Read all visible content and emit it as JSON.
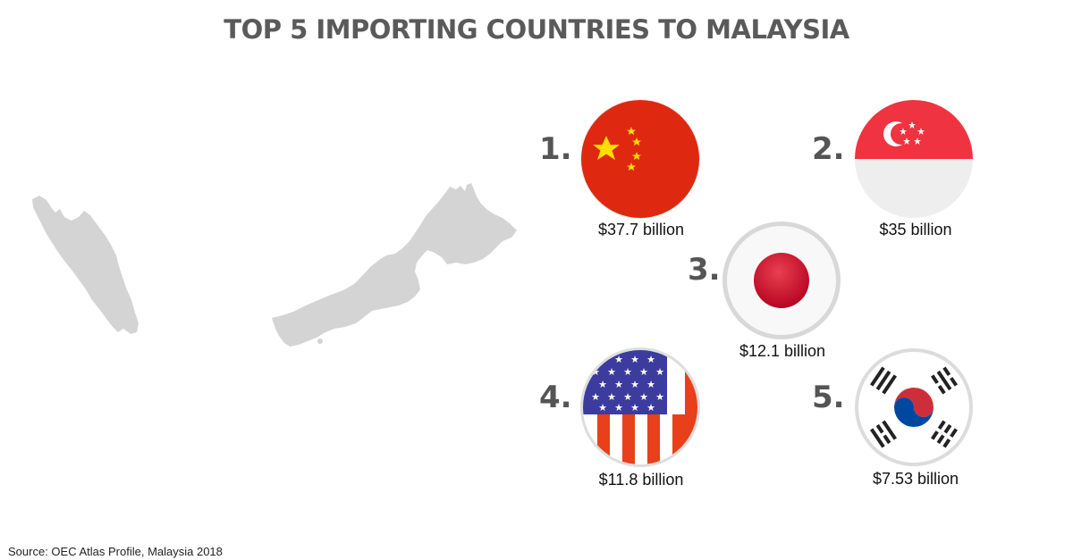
{
  "title": "TOP 5 IMPORTING COUNTRIES TO MALAYSIA",
  "countries": [
    {
      "rank": "1.",
      "flag": "china-flag-icon",
      "value": "$37.7 billion"
    },
    {
      "rank": "2.",
      "flag": "singapore-flag-icon",
      "value": "$35 billion"
    },
    {
      "rank": "3.",
      "flag": "japan-flag-icon",
      "value": "$12.1 billion"
    },
    {
      "rank": "4.",
      "flag": "usa-flag-icon",
      "value": "$11.8 billion"
    },
    {
      "rank": "5.",
      "flag": "south-korea-flag-icon",
      "value": "$7.53 billion"
    }
  ],
  "source": "Source: OEC Atlas Profile, Malaysia 2018",
  "colors": {
    "title": "#5a5a5a",
    "map": "#d4d4d4",
    "rank": "#555555",
    "china_red": "#de2910",
    "star_yellow": "#ffde00",
    "singapore_red": "#ef3340",
    "japan_red": "#bc002d",
    "usa_blue": "#3c3b9e",
    "usa_red": "#e8401a"
  }
}
